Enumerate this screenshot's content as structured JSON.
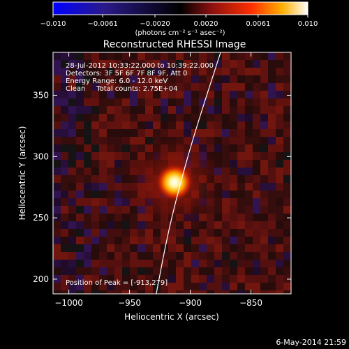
{
  "chart_data": {
    "type": "heatmap",
    "title": "Reconstructed RHESSI Image",
    "xlabel": "Heliocentric X (arcsec)",
    "ylabel": "Heliocentric Y (arcsec)",
    "xlim": [
      -1013,
      -817
    ],
    "ylim": [
      188,
      385
    ],
    "xticks": [
      -1000,
      -950,
      -900,
      -850
    ],
    "yticks": [
      200,
      250,
      300,
      350
    ],
    "xtick_labels": [
      "−1000",
      "−950",
      "−900",
      "−850"
    ],
    "ytick_labels": [
      "200",
      "250",
      "300",
      "350"
    ],
    "colorbar": {
      "range": [
        -0.01,
        0.01
      ],
      "ticks": [
        -0.01,
        -0.0061,
        -0.002,
        0.002,
        0.0061,
        0.01
      ],
      "tick_labels": [
        "−0.010",
        "−0.0061",
        "−0.0020",
        "0.0020",
        "0.0061",
        "0.010"
      ],
      "label": "(photons cm⁻² s⁻¹ asec⁻²)",
      "colors": [
        "#0000ff",
        "#2a1a8a",
        "#000000",
        "#8a1010",
        "#ff3000",
        "#ffb000",
        "#ffffff"
      ]
    },
    "annotations": [
      "28-Jul-2012 10:33:22.000 to 10:39:22.000",
      "Detectors: 3F 5F 6F 7F 8F 9F, Att 0",
      "Energy Range: 6.0 - 12.0 keV",
      "Clean     Total counts: 2.75E+04"
    ],
    "peak": {
      "x": -913,
      "y": 279
    },
    "peak_label": "Position of Peak = [-913,279]",
    "limb": [
      [
        -928,
        188
      ],
      [
        -918,
        240
      ],
      [
        -905,
        290
      ],
      [
        -893,
        330
      ],
      [
        -875,
        385
      ]
    ],
    "footer": "6-May-2014 21:59"
  }
}
